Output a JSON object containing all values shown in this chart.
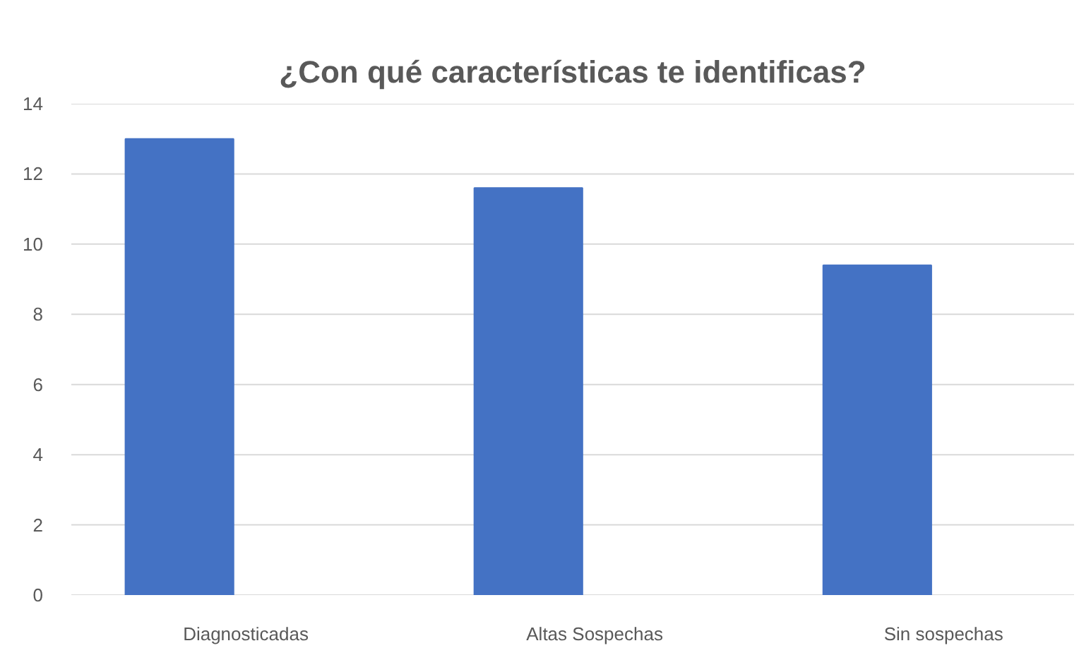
{
  "chart_data": {
    "type": "bar",
    "title": "¿Con qué características te identificas?",
    "categories": [
      "Diagnosticadas",
      "Altas Sospechas",
      "Sin sospechas"
    ],
    "values": [
      13,
      11.6,
      9.4
    ],
    "color": "#4472c4",
    "ylim": [
      0,
      14
    ],
    "yticks": [
      0,
      2,
      4,
      6,
      8,
      10,
      12,
      14
    ],
    "grid": "y"
  }
}
